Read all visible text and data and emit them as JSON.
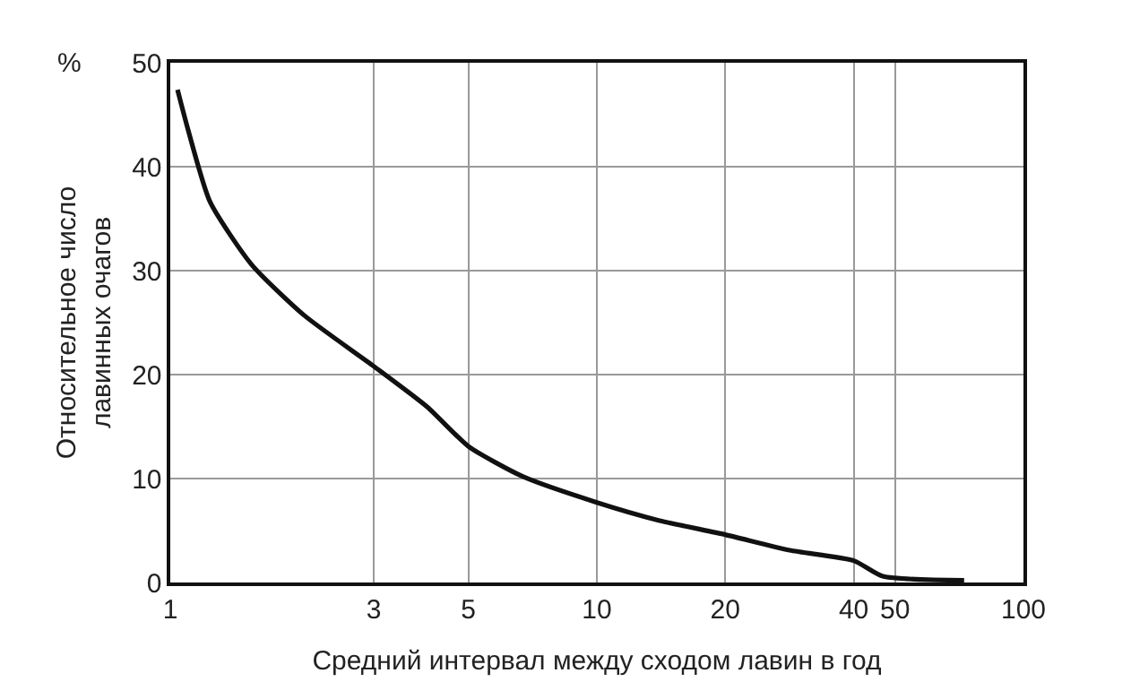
{
  "chart_data": {
    "type": "line",
    "xlabel": "Средний интервал между сходом лавин в год",
    "ylabel": "Относительное число\nлавинных очагов",
    "annotations": [
      "%"
    ],
    "x": [
      1.04,
      1.1,
      1.24,
      1.55,
      2.06,
      3,
      4,
      5,
      6.7,
      10,
      13.9,
      20,
      28.3,
      40,
      46.8,
      72.6
    ],
    "series": [
      {
        "color": "#111111",
        "values": [
          47.4,
          43.6,
          36.6,
          30.6,
          25.7,
          20.8,
          16.9,
          13.1,
          10.2,
          7.7,
          6.0,
          4.6,
          3.1,
          2.1,
          0.6,
          0.2
        ]
      }
    ],
    "log": "x",
    "xlim": [
      1,
      100
    ],
    "xticks": [
      1,
      3,
      5,
      10,
      20,
      40,
      50,
      100
    ],
    "ylim": [
      0,
      50
    ],
    "yticks": [
      0,
      10,
      20,
      30,
      40,
      50
    ],
    "grid": true,
    "marker": "none",
    "line_style": "solid"
  }
}
